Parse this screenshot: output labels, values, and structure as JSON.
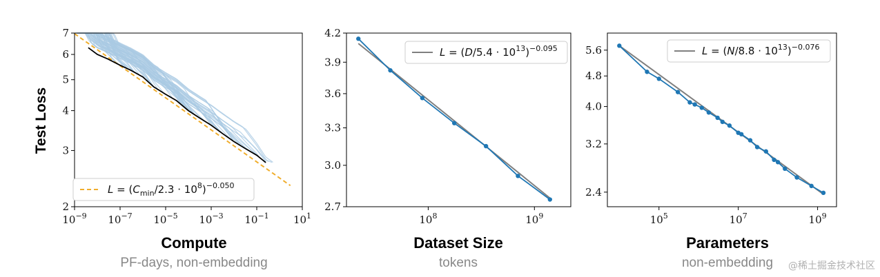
{
  "colors": {
    "trend": "#f0ad2c",
    "fit": "#7f7f7f",
    "data": "#1f77b4",
    "curves": "#a9c9e3",
    "frontier": "#000000"
  },
  "watermark": "@稀土掘金技术社区",
  "chart_data": [
    {
      "type": "line",
      "ylabel": "Test Loss",
      "xlabel": "Compute",
      "subtitle": "PF-days, non-embedding",
      "x_scale": "log",
      "y_scale": "log",
      "xlim": [
        1e-09,
        10
      ],
      "ylim": [
        2,
        7
      ],
      "xtick_labels": [
        {
          "base": "10",
          "exp": "−9"
        },
        {
          "base": "10",
          "exp": "−7"
        },
        {
          "base": "10",
          "exp": "−5"
        },
        {
          "base": "10",
          "exp": "−3"
        },
        {
          "base": "10",
          "exp": "−1"
        },
        {
          "base": "10",
          "exp": "1"
        }
      ],
      "ytick_labels": [
        "7",
        "6",
        "5",
        "4",
        "3",
        "2"
      ],
      "legend": {
        "position": "lower-left",
        "text": "L = (Cmin/2.3 · 10⁸)^−0.050"
      },
      "trend": {
        "name": "L = (Cmin/2.3 · 10⁸)^−0.050",
        "x": [
          1e-09,
          3
        ],
        "y": [
          6.97,
          2.33
        ]
      },
      "frontier": {
        "x": [
          4e-09,
          1e-08,
          3e-08,
          1e-07,
          3e-07,
          1e-06,
          3e-06,
          1e-05,
          3e-05,
          0.0001,
          0.0003,
          0.001,
          0.003,
          0.01,
          0.03,
          0.1,
          0.25
        ],
        "y": [
          6.3,
          6.0,
          5.8,
          5.55,
          5.35,
          5.1,
          4.75,
          4.5,
          4.3,
          4.0,
          3.8,
          3.6,
          3.4,
          3.2,
          3.05,
          2.9,
          2.75
        ]
      },
      "curves_note": "many light-blue individual training curves"
    },
    {
      "type": "line",
      "xlabel": "Dataset Size",
      "subtitle": "tokens",
      "x_scale": "log",
      "y_scale": "log",
      "xlim": [
        17000000.0,
        2200000000.0
      ],
      "ylim": [
        2.7,
        4.2
      ],
      "xtick_labels": [
        {
          "base": "10",
          "exp": "8"
        },
        {
          "base": "10",
          "exp": "9"
        }
      ],
      "ytick_labels": [
        "4.2",
        "3.9",
        "3.6",
        "3.3",
        "3.0",
        "2.7"
      ],
      "legend": {
        "position": "upper-right",
        "text": "L = (D/5.4 · 10¹³)^−0.095"
      },
      "x": [
        22000000.0,
        44000000.0,
        88000000.0,
        176000000.0,
        350000000.0,
        700000000.0,
        1400000000.0
      ],
      "y": [
        4.14,
        3.82,
        3.56,
        3.34,
        3.15,
        2.92,
        2.75
      ],
      "fit": {
        "x": [
          22000000.0,
          1400000000.0
        ],
        "y": [
          4.09,
          2.76
        ]
      }
    },
    {
      "type": "line",
      "xlabel": "Parameters",
      "subtitle": "non-embedding",
      "x_scale": "log",
      "y_scale": "log",
      "xlim": [
        5000.0,
        3000000000.0
      ],
      "ylim": [
        2.2,
        6.2
      ],
      "xtick_labels": [
        {
          "base": "10",
          "exp": "5"
        },
        {
          "base": "10",
          "exp": "7"
        },
        {
          "base": "10",
          "exp": "9"
        }
      ],
      "ytick_labels": [
        "5.6",
        "4.8",
        "4.0",
        "3.2",
        "2.4"
      ],
      "legend": {
        "position": "upper-right",
        "text": "L = (N/8.8 · 10¹³)^−0.076"
      },
      "x": [
        10000.0,
        50000.0,
        100000.0,
        300000.0,
        600000.0,
        800000.0,
        1200000.0,
        1800000.0,
        3000000.0,
        4000000.0,
        6000000.0,
        10000000.0,
        12000000.0,
        20000000.0,
        30000000.0,
        50000000.0,
        80000000.0,
        100000000.0,
        150000000.0,
        300000000.0,
        700000000.0,
        1400000000.0
      ],
      "y": [
        5.75,
        4.92,
        4.72,
        4.36,
        4.1,
        4.05,
        3.97,
        3.86,
        3.74,
        3.65,
        3.57,
        3.42,
        3.39,
        3.27,
        3.14,
        3.06,
        2.91,
        2.87,
        2.76,
        2.62,
        2.49,
        2.39
      ],
      "fit": {
        "x": [
          10000.0,
          1400000000.0
        ],
        "y": [
          5.75,
          2.37
        ]
      }
    }
  ]
}
